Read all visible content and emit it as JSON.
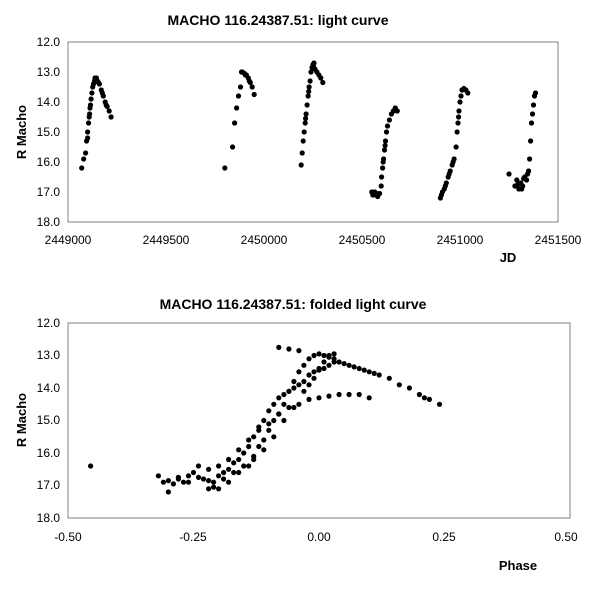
{
  "chart_data": [
    {
      "type": "scatter",
      "title": "MACHO 116.24387.51: light curve",
      "xlabel": "JD",
      "ylabel": "R Macho",
      "xlim": [
        2449000,
        2451500
      ],
      "ylim": [
        12.0,
        18.0
      ],
      "y_inverted": true,
      "grid": false,
      "legend": "none",
      "xticks": [
        2449000,
        2449500,
        2450000,
        2450500,
        2451000,
        2451500
      ],
      "xtick_labels": [
        "2449000",
        "2449500",
        "2450000",
        "2450500",
        "2451000",
        "2451500"
      ],
      "yticks": [
        12.0,
        13.0,
        14.0,
        15.0,
        16.0,
        17.0,
        18.0
      ],
      "ytick_labels": [
        "12.0",
        "13.0",
        "14.0",
        "15.0",
        "16.0",
        "17.0",
        "18.0"
      ],
      "marker_color": "#000000",
      "points": [
        [
          2449070,
          16.2
        ],
        [
          2449080,
          15.9
        ],
        [
          2449090,
          15.7
        ],
        [
          2449095,
          15.3
        ],
        [
          2449100,
          15.0
        ],
        [
          2449105,
          14.7
        ],
        [
          2449110,
          14.4
        ],
        [
          2449115,
          14.1
        ],
        [
          2449118,
          13.9
        ],
        [
          2449122,
          13.7
        ],
        [
          2449126,
          13.5
        ],
        [
          2449130,
          13.4
        ],
        [
          2449135,
          13.3
        ],
        [
          2449140,
          13.25
        ],
        [
          2449145,
          13.2
        ],
        [
          2449150,
          13.3
        ],
        [
          2449160,
          13.4
        ],
        [
          2449170,
          13.6
        ],
        [
          2449180,
          13.8
        ],
        [
          2449190,
          14.0
        ],
        [
          2449200,
          14.15
        ],
        [
          2449210,
          14.3
        ],
        [
          2449220,
          14.5
        ],
        [
          2449100,
          15.2
        ],
        [
          2449108,
          14.5
        ],
        [
          2449112,
          14.2
        ],
        [
          2449138,
          13.2
        ],
        [
          2449155,
          13.35
        ],
        [
          2449175,
          13.7
        ],
        [
          2449195,
          14.1
        ],
        [
          2449800,
          16.2
        ],
        [
          2449840,
          15.5
        ],
        [
          2449850,
          14.7
        ],
        [
          2449860,
          14.2
        ],
        [
          2449870,
          13.8
        ],
        [
          2449880,
          13.5
        ],
        [
          2449890,
          13.0
        ],
        [
          2449900,
          13.05
        ],
        [
          2449910,
          13.1
        ],
        [
          2449920,
          13.2
        ],
        [
          2449930,
          13.35
        ],
        [
          2449940,
          13.5
        ],
        [
          2449950,
          13.75
        ],
        [
          2449885,
          13.0
        ],
        [
          2449905,
          13.1
        ],
        [
          2449925,
          13.3
        ],
        [
          2450190,
          16.1
        ],
        [
          2450195,
          15.7
        ],
        [
          2450200,
          15.3
        ],
        [
          2450205,
          15.0
        ],
        [
          2450210,
          14.7
        ],
        [
          2450215,
          14.4
        ],
        [
          2450220,
          14.1
        ],
        [
          2450225,
          13.8
        ],
        [
          2450230,
          13.5
        ],
        [
          2450235,
          13.3
        ],
        [
          2450240,
          13.0
        ],
        [
          2450245,
          12.85
        ],
        [
          2450250,
          12.75
        ],
        [
          2450255,
          12.7
        ],
        [
          2450260,
          12.9
        ],
        [
          2450270,
          13.0
        ],
        [
          2450280,
          13.1
        ],
        [
          2450290,
          13.2
        ],
        [
          2450300,
          13.35
        ],
        [
          2450212,
          14.55
        ],
        [
          2450228,
          13.65
        ],
        [
          2450252,
          12.8
        ],
        [
          2450550,
          17.0
        ],
        [
          2450560,
          17.05
        ],
        [
          2450570,
          17.1
        ],
        [
          2450580,
          17.15
        ],
        [
          2450590,
          17.05
        ],
        [
          2450598,
          16.8
        ],
        [
          2450600,
          16.5
        ],
        [
          2450605,
          16.2
        ],
        [
          2450610,
          15.9
        ],
        [
          2450615,
          15.6
        ],
        [
          2450620,
          15.3
        ],
        [
          2450625,
          15.0
        ],
        [
          2450630,
          14.8
        ],
        [
          2450640,
          14.6
        ],
        [
          2450650,
          14.4
        ],
        [
          2450660,
          14.3
        ],
        [
          2450670,
          14.2
        ],
        [
          2450680,
          14.3
        ],
        [
          2450555,
          17.1
        ],
        [
          2450565,
          17.0
        ],
        [
          2450575,
          17.05
        ],
        [
          2450608,
          16.0
        ],
        [
          2450618,
          15.45
        ],
        [
          2450900,
          17.2
        ],
        [
          2450910,
          17.0
        ],
        [
          2450920,
          16.9
        ],
        [
          2450930,
          16.7
        ],
        [
          2450940,
          16.5
        ],
        [
          2450950,
          16.3
        ],
        [
          2450960,
          16.1
        ],
        [
          2450970,
          15.9
        ],
        [
          2450980,
          15.5
        ],
        [
          2450985,
          15.0
        ],
        [
          2450990,
          14.7
        ],
        [
          2450995,
          14.3
        ],
        [
          2451000,
          14.0
        ],
        [
          2451005,
          13.8
        ],
        [
          2451010,
          13.6
        ],
        [
          2451020,
          13.55
        ],
        [
          2451030,
          13.6
        ],
        [
          2451040,
          13.7
        ],
        [
          2450905,
          17.1
        ],
        [
          2450925,
          16.8
        ],
        [
          2450945,
          16.4
        ],
        [
          2450965,
          16.0
        ],
        [
          2450993,
          14.5
        ],
        [
          2451250,
          16.4
        ],
        [
          2451280,
          16.8
        ],
        [
          2451290,
          16.6
        ],
        [
          2451300,
          16.9
        ],
        [
          2451310,
          16.7
        ],
        [
          2451320,
          16.8
        ],
        [
          2451330,
          16.5
        ],
        [
          2451340,
          16.6
        ],
        [
          2451350,
          16.3
        ],
        [
          2451355,
          15.9
        ],
        [
          2451360,
          15.3
        ],
        [
          2451365,
          14.7
        ],
        [
          2451370,
          14.4
        ],
        [
          2451375,
          14.1
        ],
        [
          2451380,
          13.8
        ],
        [
          2451385,
          13.7
        ],
        [
          2451295,
          16.75
        ],
        [
          2451315,
          16.9
        ],
        [
          2451325,
          16.55
        ],
        [
          2451345,
          16.4
        ]
      ]
    },
    {
      "type": "scatter",
      "title": "MACHO 116.24387.51: folded light curve",
      "xlabel": "Phase",
      "ylabel": "R Macho",
      "xlim": [
        -0.5,
        0.5
      ],
      "ylim": [
        12.0,
        18.0
      ],
      "y_inverted": true,
      "grid": false,
      "legend": "none",
      "xticks": [
        -0.5,
        -0.25,
        0.0,
        0.25,
        0.5
      ],
      "xtick_labels": [
        "-0.50",
        "-0.25",
        "0.00",
        "0.25",
        "0.50"
      ],
      "yticks": [
        12.0,
        13.0,
        14.0,
        15.0,
        16.0,
        17.0,
        18.0
      ],
      "ytick_labels": [
        "12.0",
        "13.0",
        "14.0",
        "15.0",
        "16.0",
        "17.0",
        "18.0"
      ],
      "marker_color": "#000000",
      "points": [
        [
          -0.455,
          16.4
        ],
        [
          -0.32,
          16.7
        ],
        [
          -0.31,
          16.9
        ],
        [
          -0.3,
          17.2
        ],
        [
          -0.29,
          16.95
        ],
        [
          -0.28,
          16.8
        ],
        [
          -0.27,
          16.9
        ],
        [
          -0.26,
          16.7
        ],
        [
          -0.25,
          16.6
        ],
        [
          -0.24,
          16.4
        ],
        [
          -0.23,
          16.8
        ],
        [
          -0.22,
          17.1
        ],
        [
          -0.21,
          16.9
        ],
        [
          -0.2,
          16.7
        ],
        [
          -0.19,
          16.6
        ],
        [
          -0.18,
          16.5
        ],
        [
          -0.17,
          16.3
        ],
        [
          -0.16,
          16.2
        ],
        [
          -0.15,
          16.0
        ],
        [
          -0.14,
          15.8
        ],
        [
          -0.13,
          15.5
        ],
        [
          -0.12,
          15.2
        ],
        [
          -0.11,
          15.0
        ],
        [
          -0.1,
          14.7
        ],
        [
          -0.09,
          14.5
        ],
        [
          -0.08,
          14.3
        ],
        [
          -0.07,
          14.2
        ],
        [
          -0.06,
          14.1
        ],
        [
          -0.05,
          14.0
        ],
        [
          -0.04,
          13.9
        ],
        [
          -0.03,
          13.8
        ],
        [
          -0.02,
          13.6
        ],
        [
          -0.01,
          13.5
        ],
        [
          0.0,
          13.45
        ],
        [
          0.01,
          13.4
        ],
        [
          0.02,
          13.3
        ],
        [
          0.03,
          13.2
        ],
        [
          0.04,
          13.2
        ],
        [
          0.05,
          13.25
        ],
        [
          0.06,
          13.3
        ],
        [
          0.07,
          13.35
        ],
        [
          0.08,
          13.4
        ],
        [
          0.09,
          13.45
        ],
        [
          0.1,
          13.5
        ],
        [
          0.11,
          13.55
        ],
        [
          0.12,
          13.6
        ],
        [
          0.14,
          13.7
        ],
        [
          0.16,
          13.9
        ],
        [
          0.18,
          14.0
        ],
        [
          0.2,
          14.2
        ],
        [
          0.21,
          14.3
        ],
        [
          0.22,
          14.35
        ],
        [
          0.24,
          14.5
        ],
        [
          -0.3,
          16.85
        ],
        [
          -0.28,
          16.75
        ],
        [
          -0.26,
          16.9
        ],
        [
          -0.24,
          16.75
        ],
        [
          -0.22,
          16.5
        ],
        [
          -0.2,
          16.4
        ],
        [
          -0.18,
          16.2
        ],
        [
          -0.16,
          15.9
        ],
        [
          -0.14,
          15.6
        ],
        [
          -0.12,
          15.3
        ],
        [
          -0.1,
          15.1
        ],
        [
          -0.08,
          14.8
        ],
        [
          -0.06,
          14.6
        ],
        [
          -0.04,
          14.5
        ],
        [
          -0.02,
          14.35
        ],
        [
          0.0,
          14.3
        ],
        [
          0.02,
          14.25
        ],
        [
          0.04,
          14.2
        ],
        [
          0.06,
          14.2
        ],
        [
          0.08,
          14.2
        ],
        [
          0.1,
          14.3
        ],
        [
          -0.2,
          17.1
        ],
        [
          -0.18,
          16.9
        ],
        [
          -0.16,
          16.6
        ],
        [
          -0.14,
          16.4
        ],
        [
          -0.13,
          16.1
        ],
        [
          -0.12,
          15.8
        ],
        [
          -0.11,
          15.6
        ],
        [
          -0.1,
          15.3
        ],
        [
          -0.09,
          15.0
        ],
        [
          -0.08,
          14.8
        ],
        [
          -0.07,
          14.5
        ],
        [
          -0.06,
          14.1
        ],
        [
          -0.05,
          13.8
        ],
        [
          -0.04,
          13.5
        ],
        [
          -0.03,
          13.3
        ],
        [
          -0.02,
          13.1
        ],
        [
          -0.01,
          13.0
        ],
        [
          0.0,
          12.95
        ],
        [
          0.01,
          13.0
        ],
        [
          0.02,
          13.05
        ],
        [
          0.03,
          13.1
        ],
        [
          -0.22,
          16.85
        ],
        [
          -0.21,
          17.05
        ],
        [
          -0.19,
          16.8
        ],
        [
          -0.17,
          16.6
        ],
        [
          -0.15,
          16.4
        ],
        [
          -0.13,
          16.2
        ],
        [
          -0.11,
          15.9
        ],
        [
          -0.09,
          15.5
        ],
        [
          -0.07,
          15.0
        ],
        [
          -0.05,
          14.6
        ],
        [
          -0.03,
          14.1
        ],
        [
          -0.02,
          13.9
        ],
        [
          -0.01,
          13.7
        ],
        [
          0.0,
          13.4
        ],
        [
          0.01,
          13.2
        ],
        [
          0.02,
          13.0
        ],
        [
          0.03,
          12.95
        ],
        [
          -0.04,
          12.85
        ],
        [
          -0.06,
          12.8
        ],
        [
          -0.08,
          12.75
        ]
      ]
    }
  ]
}
